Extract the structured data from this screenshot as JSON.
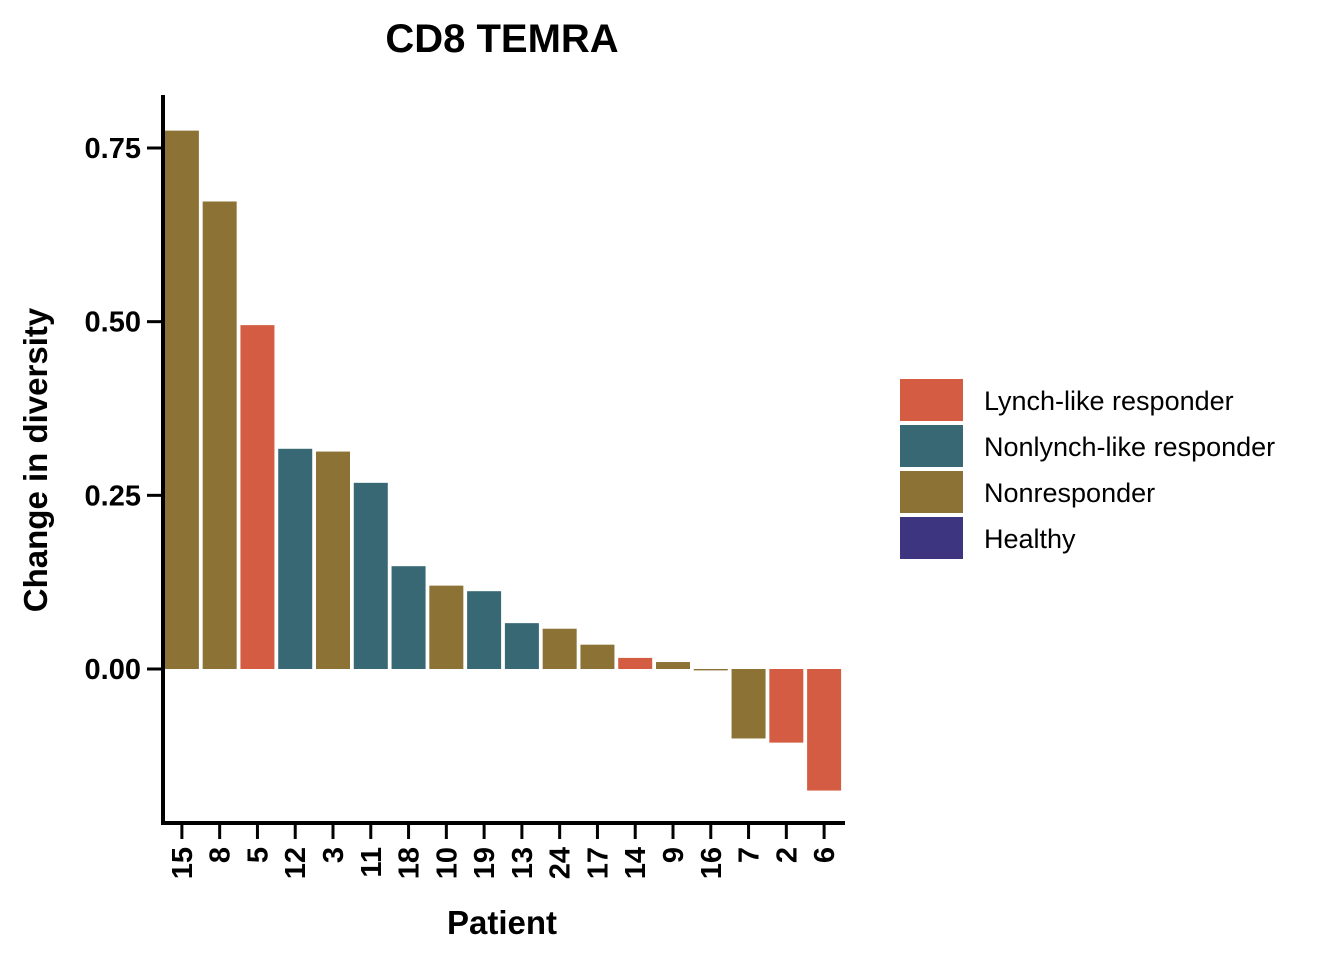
{
  "chart_data": {
    "type": "bar",
    "title": "CD8 TEMRA",
    "xlabel": "Patient",
    "ylabel": "Change in diversity",
    "ylim": [
      -0.21,
      0.83
    ],
    "yticks": [
      0.0,
      0.25,
      0.5,
      0.75
    ],
    "ytick_labels": [
      "0.00",
      "0.25",
      "0.50",
      "0.75"
    ],
    "grid": false,
    "legend_position": "right",
    "legend": [
      {
        "label": "Lynch-like responder",
        "color": "#d35c42"
      },
      {
        "label": "Nonlynch-like responder",
        "color": "#376873"
      },
      {
        "label": "Nonresponder",
        "color": "#8c7234"
      },
      {
        "label": "Healthy",
        "color": "#3d3580"
      }
    ],
    "categories": [
      "15",
      "8",
      "5",
      "12",
      "3",
      "11",
      "18",
      "10",
      "19",
      "13",
      "24",
      "17",
      "14",
      "9",
      "16",
      "7",
      "2",
      "6"
    ],
    "values": [
      0.775,
      0.673,
      0.495,
      0.317,
      0.313,
      0.268,
      0.148,
      0.12,
      0.112,
      0.066,
      0.058,
      0.035,
      0.016,
      0.01,
      -0.002,
      -0.1,
      -0.106,
      -0.175
    ],
    "groups": [
      "Nonresponder",
      "Nonresponder",
      "Lynch-like responder",
      "Nonlynch-like responder",
      "Nonresponder",
      "Nonlynch-like responder",
      "Nonlynch-like responder",
      "Nonresponder",
      "Nonlynch-like responder",
      "Nonlynch-like responder",
      "Nonresponder",
      "Nonresponder",
      "Lynch-like responder",
      "Nonresponder",
      "Nonresponder",
      "Nonresponder",
      "Lynch-like responder",
      "Lynch-like responder"
    ]
  }
}
